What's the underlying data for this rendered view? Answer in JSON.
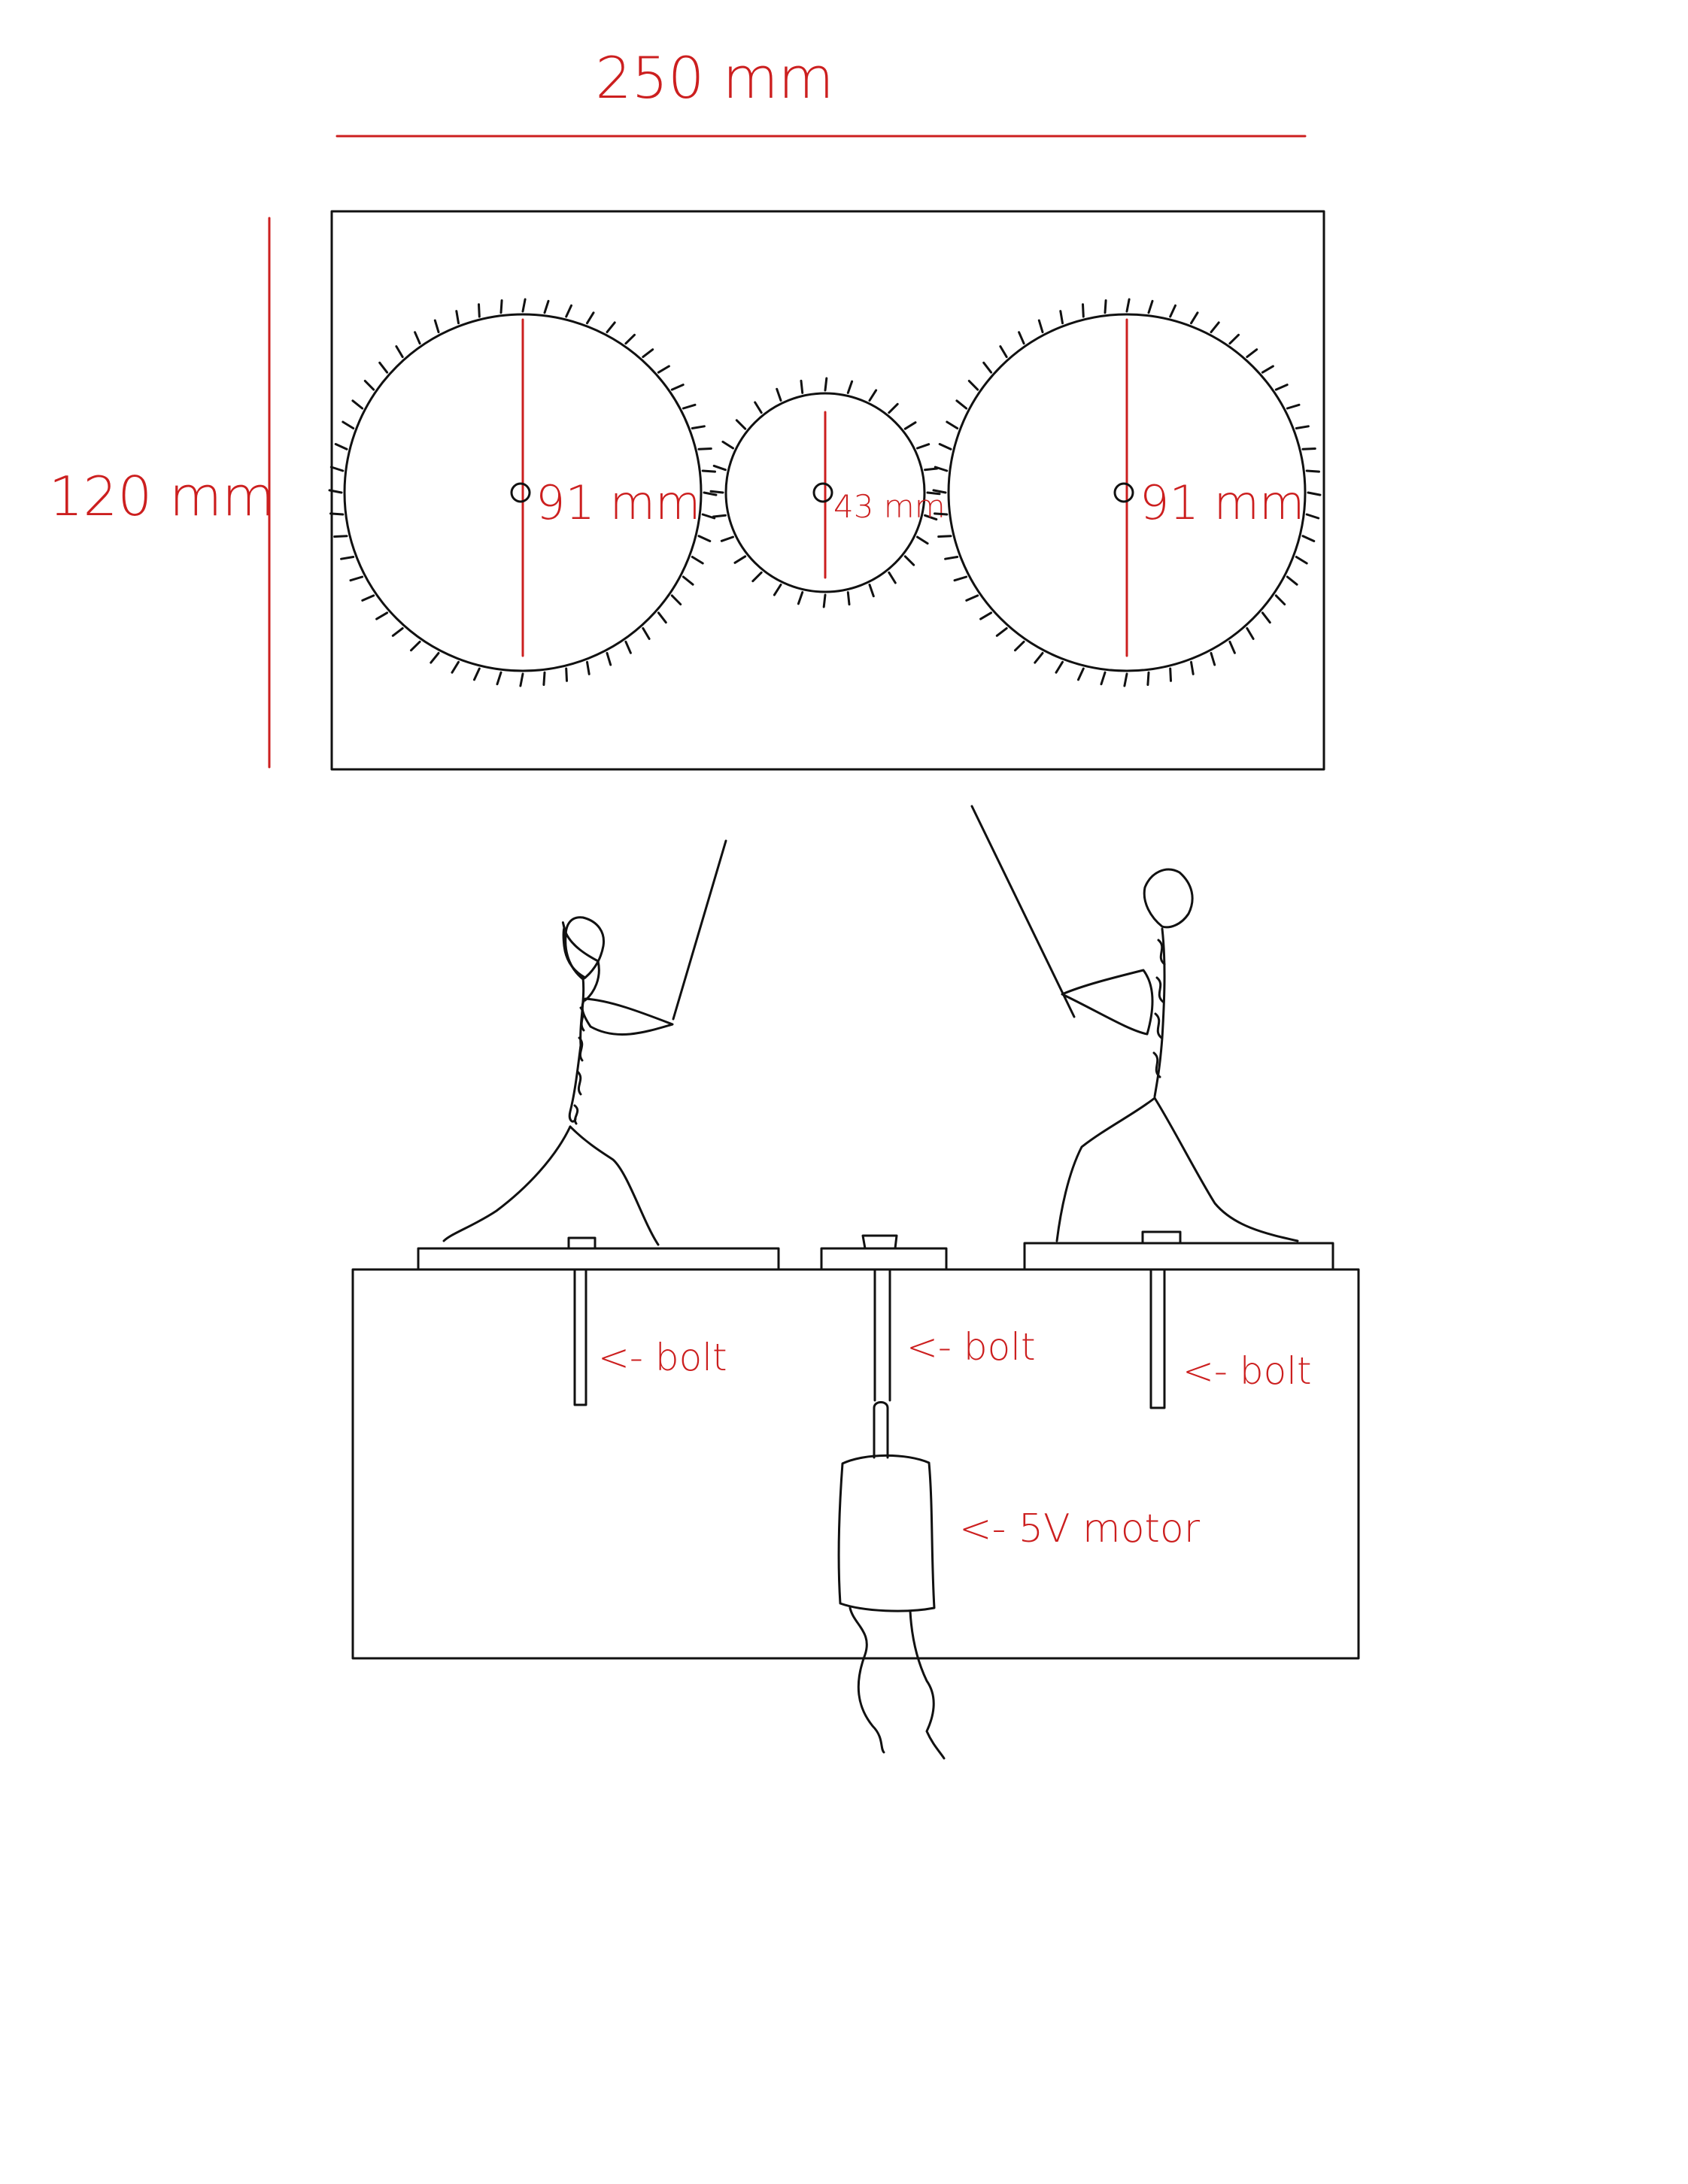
{
  "dimensions": {
    "width_label": "250 mm",
    "height_label": "120 mm"
  },
  "gears": [
    {
      "id": "left-gear",
      "diameter_label": "91 mm"
    },
    {
      "id": "center-gear",
      "diameter_label": "43 mm"
    },
    {
      "id": "right-gear",
      "diameter_label": "91 mm"
    }
  ],
  "parts": {
    "bolt_left_label": "<- bolt",
    "bolt_center_label": "<- bolt",
    "bolt_right_label": "<- bolt",
    "motor_label": "<- 5V motor"
  },
  "colors": {
    "ink": "#111111",
    "annotation": "#cc1f1f"
  }
}
